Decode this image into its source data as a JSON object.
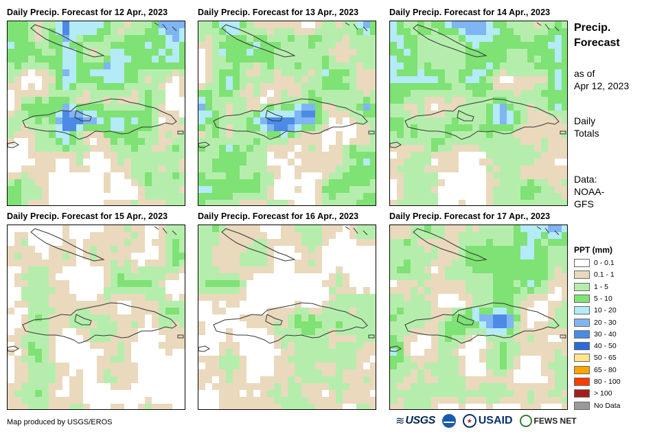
{
  "panels": [
    {
      "title": "Daily Precip. Forecast for 12 Apr., 2023",
      "day": 0
    },
    {
      "title": "Daily Precip. Forecast for 13 Apr., 2023",
      "day": 1
    },
    {
      "title": "Daily Precip. Forecast for 14 Apr., 2023",
      "day": 2
    },
    {
      "title": "Daily Precip. Forecast for 15 Apr., 2023",
      "day": 3
    },
    {
      "title": "Daily Precip. Forecast for 16 Apr., 2023",
      "day": 4
    },
    {
      "title": "Daily Precip. Forecast for 17 Apr., 2023",
      "day": 5
    }
  ],
  "side": {
    "title_line1": "Precip.",
    "title_line2": "Forecast",
    "asof_line1": "as of",
    "asof_line2": "Apr 12, 2023",
    "totals_line1": "Daily",
    "totals_line2": "Totals",
    "data_line1": "Data:",
    "data_line2": "NOAA-",
    "data_line3": "GFS"
  },
  "legend": {
    "title": "PPT (mm)",
    "items": [
      {
        "label": "0 - 0.1",
        "color": "#ffffff"
      },
      {
        "label": "0.1 - 1",
        "color": "#ead9bd"
      },
      {
        "label": "1 - 5",
        "color": "#b5eeac"
      },
      {
        "label": "5 - 10",
        "color": "#7fe274"
      },
      {
        "label": "10 - 20",
        "color": "#b3ebf7"
      },
      {
        "label": "20 - 30",
        "color": "#7fb5f2"
      },
      {
        "label": "30 - 40",
        "color": "#4c8ae6"
      },
      {
        "label": "40 - 50",
        "color": "#2b6bd8"
      },
      {
        "label": "50 - 65",
        "color": "#ffe68c"
      },
      {
        "label": "65 - 80",
        "color": "#ffa500"
      },
      {
        "label": "80 - 100",
        "color": "#ff3c00"
      },
      {
        "label": "> 100",
        "color": "#a31f1f"
      },
      {
        "label": "No Data",
        "color": "#9a9a9a"
      }
    ]
  },
  "credit": "Map produced by USGS/EROS",
  "logos": {
    "usgs": "USGS",
    "usaid": "USAID",
    "fews": "FEWS NET"
  }
}
